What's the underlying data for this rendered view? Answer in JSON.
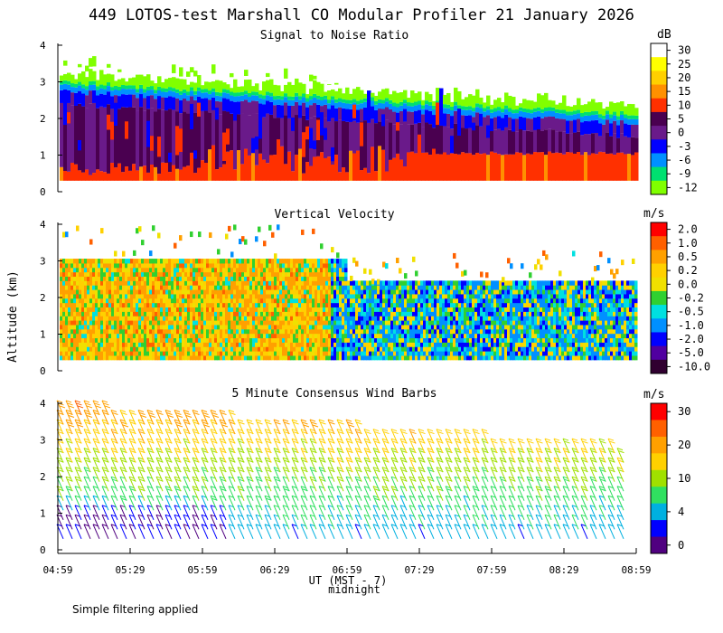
{
  "title": "449 LOTOS-test Marshall CO Modular Profiler 21 January 2026",
  "footnote": "Simple filtering applied",
  "y_axis_label": "Altitude (km)",
  "x_axis": {
    "label": "UT (MST - 7)",
    "sublabel": "midnight",
    "ticks": [
      "04:59",
      "05:29",
      "05:59",
      "06:29",
      "06:59",
      "07:29",
      "07:59",
      "08:29",
      "08:59"
    ]
  },
  "chart_data": [
    {
      "type": "heatmap",
      "title": "Signal to Noise Ratio",
      "unit": "dB",
      "ylim": [
        0,
        4
      ],
      "y_ticks": [
        "0",
        "1",
        "2",
        "3",
        "4"
      ],
      "colorbar": {
        "labels": [
          "30",
          "25",
          "20",
          "15",
          "10",
          "5",
          "0",
          "-3",
          "-6",
          "-9",
          "-12"
        ],
        "colors": [
          "#ffffff",
          "#ffff00",
          "#ffd000",
          "#ff9000",
          "#ff3000",
          "#4a0050",
          "#6a1a8a",
          "#0000ff",
          "#0090ff",
          "#00e070",
          "#80ff00"
        ]
      },
      "description_layers": [
        {
          "name": "strong-echo",
          "alt_km": [
            0.3,
            1.1
          ],
          "color": "#ff3000"
        },
        {
          "name": "moderate",
          "alt_km": [
            1.1,
            2.5
          ],
          "color": "#6a1a8a"
        },
        {
          "name": "weak",
          "alt_km": [
            2.5,
            3.2
          ],
          "color": "#80ff00"
        }
      ]
    },
    {
      "type": "heatmap",
      "title": "Vertical Velocity",
      "unit": "m/s",
      "ylim": [
        0,
        4
      ],
      "y_ticks": [
        "0",
        "1",
        "2",
        "3",
        "4"
      ],
      "colorbar": {
        "labels": [
          "2.0",
          "1.0",
          "0.5",
          "0.2",
          "0.0",
          "-0.2",
          "-0.5",
          "-1.0",
          "-2.0",
          "-5.0",
          "-10.0"
        ],
        "colors": [
          "#ff0000",
          "#ff6000",
          "#ffa000",
          "#ffd000",
          "#f0e000",
          "#30d030",
          "#00e0e0",
          "#0090ff",
          "#0000ff",
          "#5000a0",
          "#300030"
        ]
      }
    },
    {
      "type": "barbs",
      "title": "5 Minute Consensus Wind Barbs",
      "unit": "m/s",
      "ylim": [
        0,
        4
      ],
      "y_ticks": [
        "0",
        "1",
        "2",
        "3",
        "4"
      ],
      "colorbar": {
        "labels": [
          "30",
          "20",
          "10",
          "4",
          "0"
        ],
        "colors": [
          "#ff0000",
          "#ff6000",
          "#ffa000",
          "#ffd000",
          "#a0e000",
          "#30e060",
          "#00b0e0",
          "#0000ff",
          "#500080"
        ]
      }
    }
  ]
}
